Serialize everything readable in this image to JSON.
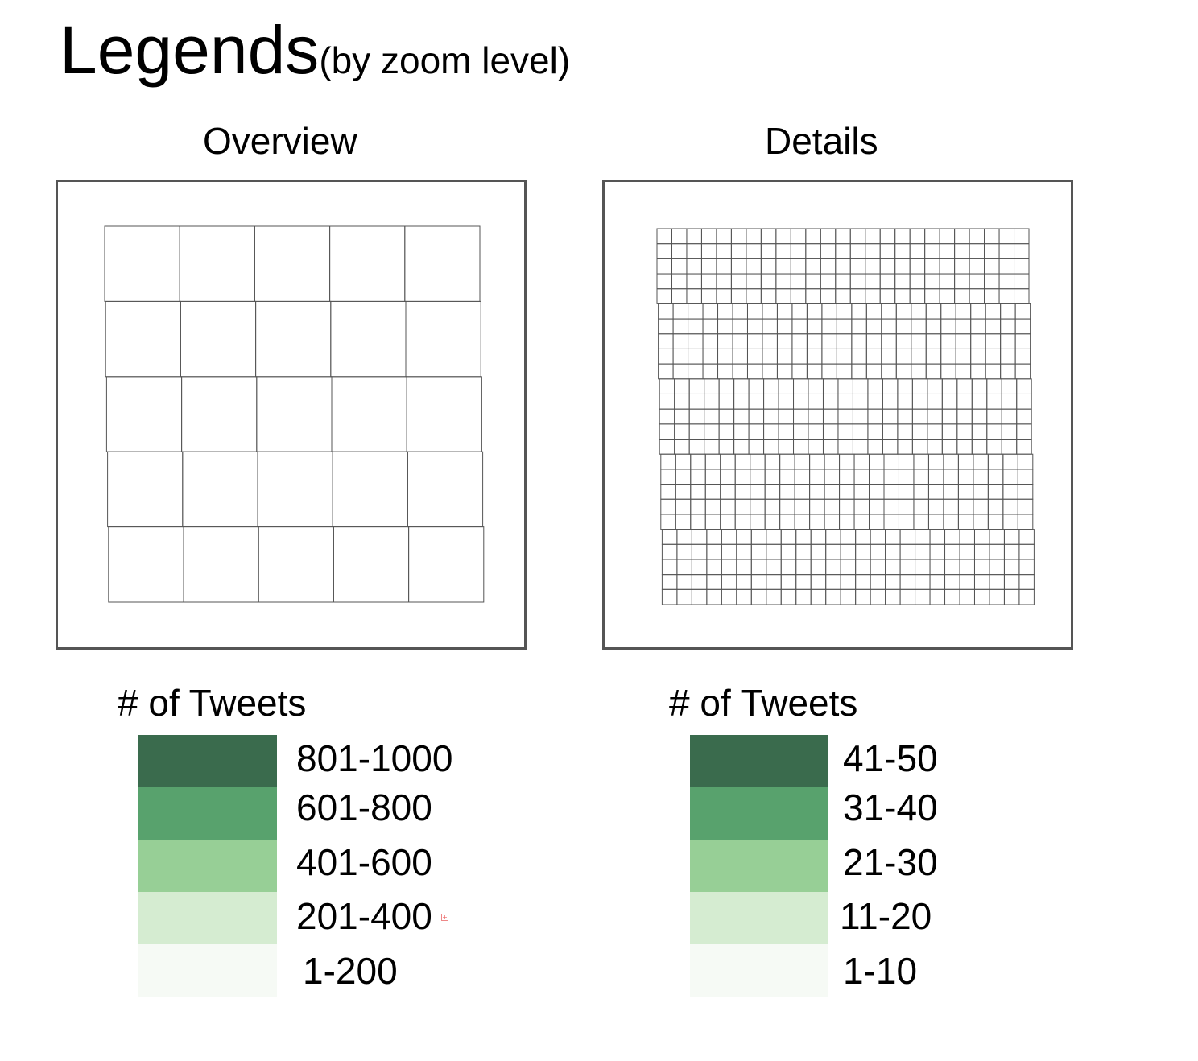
{
  "title": {
    "main": "Legends",
    "sub": "(by zoom level)"
  },
  "panels": [
    {
      "label": "Overview",
      "grid": {
        "rows": 5,
        "cols": 5
      }
    },
    {
      "label": "Details",
      "grid": {
        "rows": 25,
        "cols": 25
      }
    }
  ],
  "legends": [
    {
      "title": "# of Tweets",
      "items": [
        {
          "label": "801-1000",
          "color": "#3a6b4d"
        },
        {
          "label": "601-800",
          "color": "#58a26d"
        },
        {
          "label": "401-600",
          "color": "#97cf96"
        },
        {
          "label": "201-400",
          "color": "#d5ecd1"
        },
        {
          "label": "1-200",
          "color": "#f6faf5"
        }
      ]
    },
    {
      "title": "# of Tweets",
      "items": [
        {
          "label": "41-50",
          "color": "#3a6b4d"
        },
        {
          "label": "31-40",
          "color": "#58a26d"
        },
        {
          "label": "21-30",
          "color": "#97cf96"
        },
        {
          "label": "11-20",
          "color": "#d5ecd1"
        },
        {
          "label": "1-10",
          "color": "#f6faf5"
        }
      ]
    }
  ]
}
